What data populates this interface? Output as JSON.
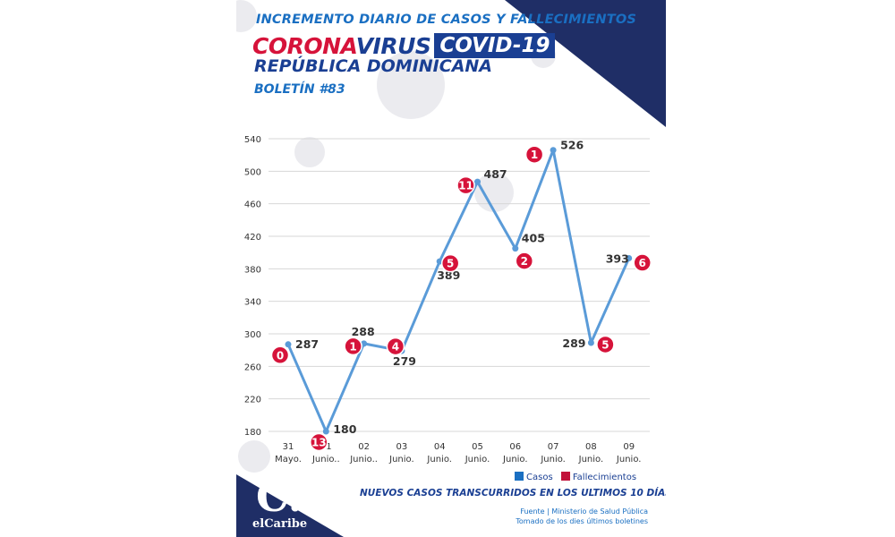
{
  "header": {
    "line1": "INCREMENTO DIARIO DE CASOS Y FALLECIMIENTOS",
    "corona": "CORONA",
    "virus": "VIRUS",
    "covid": "COVID-19",
    "country": "REPÚBLICA DOMINICANA",
    "bulletin": "BOLETÍN #83"
  },
  "chart_data": {
    "type": "line",
    "categories": [
      [
        "31",
        "Mayo."
      ],
      [
        "01",
        "Junio.."
      ],
      [
        "02",
        "Junio.."
      ],
      [
        "03",
        "Junio."
      ],
      [
        "04",
        "Junio."
      ],
      [
        "05",
        "Junio."
      ],
      [
        "06",
        "Junio."
      ],
      [
        "07",
        "Junio."
      ],
      [
        "08",
        "Junio."
      ],
      [
        "09",
        "Junio."
      ]
    ],
    "series": [
      {
        "name": "Casos",
        "values": [
          287,
          180,
          288,
          279,
          389,
          487,
          405,
          526,
          289,
          393
        ]
      },
      {
        "name": "Fallecimientos",
        "values": [
          0,
          13,
          1,
          4,
          5,
          11,
          2,
          1,
          5,
          6
        ]
      }
    ],
    "yticks": [
      180,
      220,
      260,
      300,
      340,
      380,
      420,
      460,
      500,
      540
    ],
    "ylim": [
      180,
      540
    ],
    "grid": true,
    "legend": "bottom-right",
    "colors": {
      "casos": "#5a9bd8",
      "fallecimientos": "#d6133a"
    }
  },
  "legend": {
    "casos": "Casos",
    "fallecimientos": "Fallecimientos"
  },
  "footer": {
    "note": "NUEVOS CASOS TRANSCURRIDOS EN LOS ULTIMOS 10 DÍAS",
    "source1": "Fuente | Ministerio de Salud Pública",
    "source2": "Tomado de  los dies últimos boletines"
  },
  "logo": {
    "mark": "C.",
    "name": "elCaribe"
  }
}
